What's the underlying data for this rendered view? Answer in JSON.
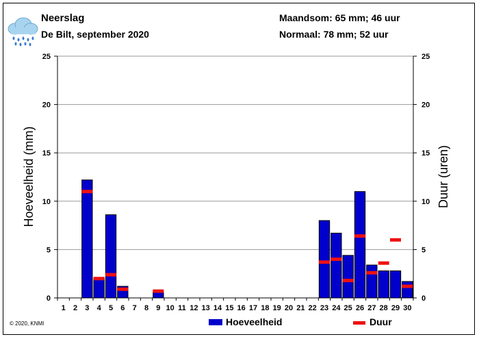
{
  "header": {
    "title": "Neerslag",
    "subtitle": "De Bilt, september 2020",
    "month_total": "Maandsom: 65 mm; 46 uur",
    "normal": "Normaal: 78 mm; 52 uur"
  },
  "icon": {
    "name": "rain-cloud-icon"
  },
  "footer": {
    "copyright": "© 2020, KNMI"
  },
  "legend": {
    "bar_label": "Hoeveelheid",
    "line_label": "Duur"
  },
  "colors": {
    "bar": "#0000cc",
    "duration": "#ee1111",
    "grid": "#999999"
  },
  "chart_data": {
    "type": "bar",
    "categories": [
      "1",
      "2",
      "3",
      "4",
      "5",
      "6",
      "7",
      "8",
      "9",
      "10",
      "11",
      "12",
      "13",
      "14",
      "15",
      "16",
      "17",
      "18",
      "19",
      "20",
      "21",
      "22",
      "23",
      "24",
      "25",
      "26",
      "27",
      "28",
      "29",
      "30"
    ],
    "series": [
      {
        "name": "Hoeveelheid",
        "axis": "left",
        "values": [
          0,
          0,
          12.2,
          2.0,
          8.6,
          1.2,
          0,
          0,
          0.6,
          0,
          0,
          0,
          0,
          0,
          0,
          0,
          0,
          0,
          0,
          0,
          0,
          0,
          8.0,
          6.7,
          4.4,
          11.0,
          3.4,
          2.8,
          2.8,
          1.7
        ]
      },
      {
        "name": "Duur",
        "axis": "right",
        "marker": "dash",
        "values": [
          null,
          null,
          11.0,
          2.0,
          2.4,
          0.9,
          null,
          null,
          0.7,
          null,
          null,
          null,
          null,
          null,
          null,
          null,
          null,
          null,
          null,
          null,
          null,
          null,
          3.7,
          4.0,
          1.8,
          6.4,
          2.6,
          3.6,
          6.0,
          1.2
        ]
      }
    ],
    "ylabel": "Hoeveelheid (mm)",
    "y2label": "Duur (uren)",
    "ylim": [
      0,
      25
    ],
    "y2lim": [
      0,
      25
    ],
    "yticks": [
      0,
      5,
      10,
      15,
      20,
      25
    ],
    "grid": true,
    "legend_position": "bottom"
  }
}
